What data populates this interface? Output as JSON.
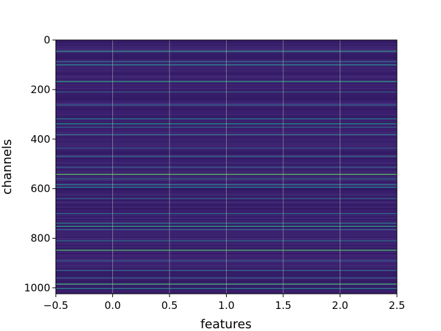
{
  "chart_data": {
    "type": "heatmap",
    "title": "",
    "xlabel": "features",
    "ylabel": "channels",
    "xlim": [
      -0.5,
      2.5
    ],
    "ylim": [
      1024,
      0
    ],
    "n_rows": 1024,
    "n_cols": 3,
    "x_ticks": [
      -0.5,
      0.0,
      0.5,
      1.0,
      1.5,
      2.0,
      2.5
    ],
    "x_tick_labels": [
      "−0.5",
      "0.0",
      "0.5",
      "1.0",
      "1.5",
      "2.0",
      "2.5"
    ],
    "y_ticks": [
      0,
      200,
      400,
      600,
      800,
      1000
    ],
    "y_tick_labels": [
      "0",
      "200",
      "400",
      "600",
      "800",
      "1000"
    ],
    "grid": true,
    "colormap": "viridis",
    "base_color": "#3b1f6e",
    "stripes": [
      {
        "channel": 45,
        "value": 0.6
      },
      {
        "channel": 47,
        "value": 0.3
      },
      {
        "channel": 88,
        "value": 0.35
      },
      {
        "channel": 100,
        "value": 0.45
      },
      {
        "channel": 168,
        "value": 0.55
      },
      {
        "channel": 210,
        "value": 0.3
      },
      {
        "channel": 262,
        "value": 0.35
      },
      {
        "channel": 318,
        "value": 0.4
      },
      {
        "channel": 338,
        "value": 0.5
      },
      {
        "channel": 352,
        "value": 0.3
      },
      {
        "channel": 382,
        "value": 0.35
      },
      {
        "channel": 436,
        "value": 0.3
      },
      {
        "channel": 470,
        "value": 0.35
      },
      {
        "channel": 515,
        "value": 0.3
      },
      {
        "channel": 542,
        "value": 0.75
      },
      {
        "channel": 560,
        "value": 0.35
      },
      {
        "channel": 583,
        "value": 0.4
      },
      {
        "channel": 594,
        "value": 0.45
      },
      {
        "channel": 640,
        "value": 0.3
      },
      {
        "channel": 700,
        "value": 0.35
      },
      {
        "channel": 740,
        "value": 0.4
      },
      {
        "channel": 752,
        "value": 0.55
      },
      {
        "channel": 765,
        "value": 0.3
      },
      {
        "channel": 810,
        "value": 0.35
      },
      {
        "channel": 848,
        "value": 0.7
      },
      {
        "channel": 890,
        "value": 0.3
      },
      {
        "channel": 930,
        "value": 0.35
      },
      {
        "channel": 960,
        "value": 0.3
      },
      {
        "channel": 985,
        "value": 0.65
      },
      {
        "channel": 1003,
        "value": 0.4
      }
    ]
  }
}
